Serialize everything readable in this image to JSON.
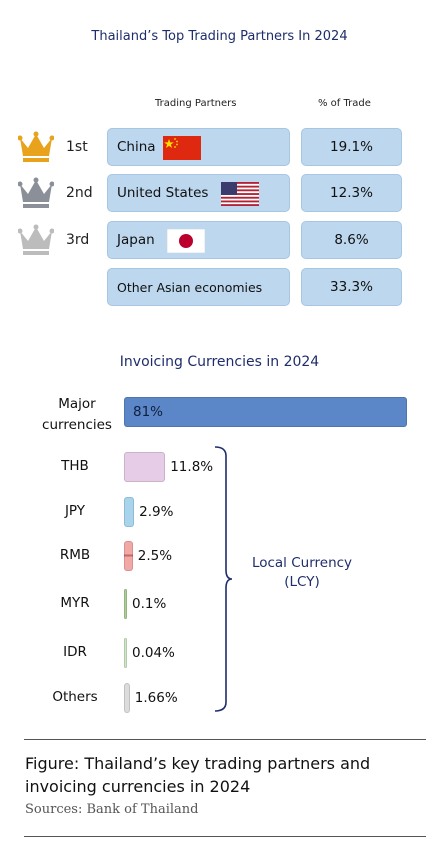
{
  "partners_chart": {
    "title": "Thailand’s Top Trading Partners In 2024",
    "col_partner": "Trading Partners",
    "col_pct": "% of Trade",
    "rows": [
      {
        "rank": "1st",
        "name": "China",
        "pct": "19.1%",
        "crown_color": "#e8a21b",
        "flag": "china-flag"
      },
      {
        "rank": "2nd",
        "name": "United States",
        "pct": "12.3%",
        "crown_color": "#8a8f98",
        "flag": "us-flag"
      },
      {
        "rank": "3rd",
        "name": "Japan",
        "pct": "8.6%",
        "crown_color": "#bcbcbc",
        "flag": "japan-flag"
      },
      {
        "rank": "",
        "name": "Other Asian economies",
        "pct": "33.3%"
      }
    ]
  },
  "chart_data": {
    "type": "bar",
    "title": "Invoicing Currencies in 2024",
    "categories": [
      "Major currencies",
      "THB",
      "JPY",
      "RMB",
      "MYR",
      "IDR",
      "Others"
    ],
    "values": [
      81,
      11.8,
      2.9,
      2.5,
      0.1,
      0.04,
      1.66
    ],
    "value_labels": [
      "81%",
      "11.8%",
      "2.9%",
      "2.5%",
      "0.1%",
      "0.04%",
      "1.66%"
    ],
    "colors": [
      "#5b86c8",
      "#e6cce6",
      "#a9d4ee",
      "#f2a8a4",
      "#a9cf93",
      "#cfe6c4",
      "#dcdcdc"
    ],
    "bracket_label": "Local Currency",
    "bracket_sublabel": "(LCY)",
    "orientation": "horizontal"
  },
  "footer": {
    "caption": "Figure: Thailand’s key trading partners and invoicing currencies in 2024",
    "source": "Sources: Bank of Thailand"
  }
}
